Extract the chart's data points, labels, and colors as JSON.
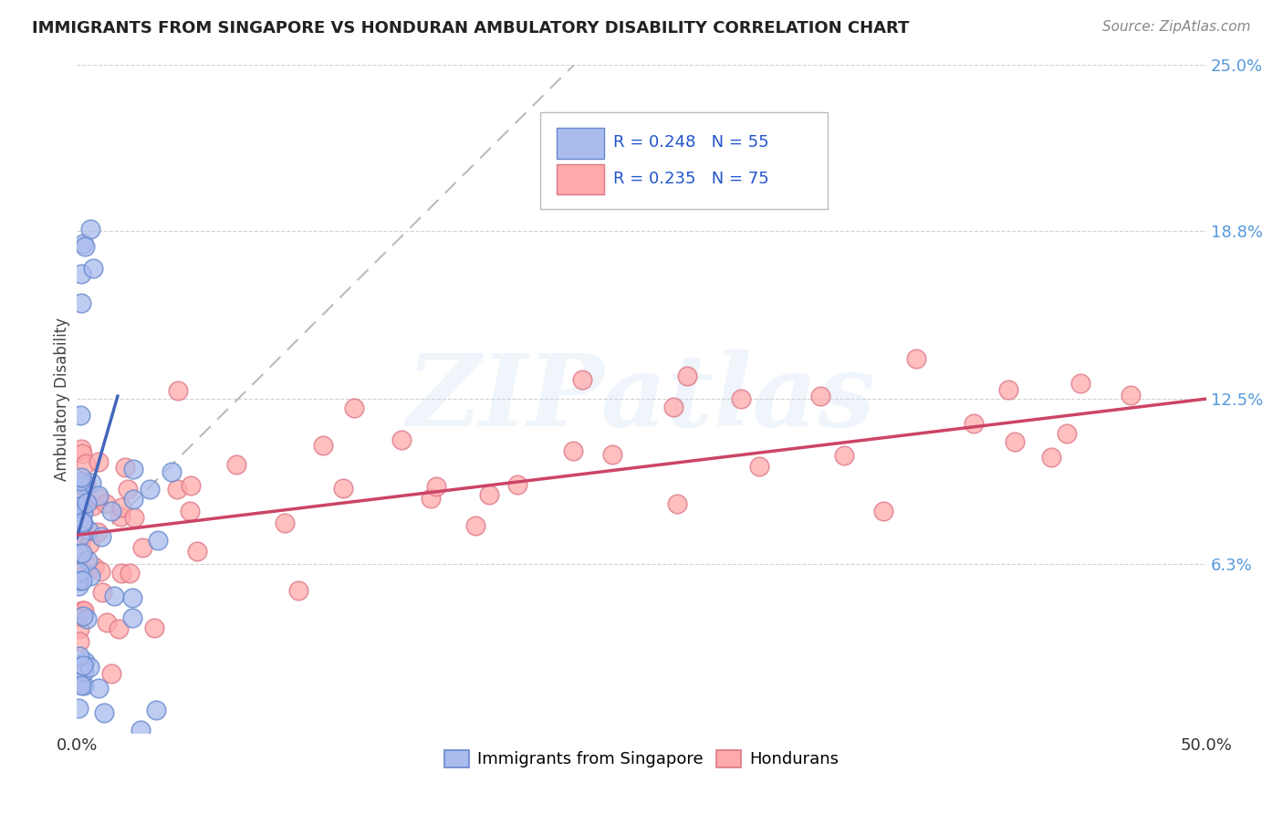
{
  "title": "IMMIGRANTS FROM SINGAPORE VS HONDURAN AMBULATORY DISABILITY CORRELATION CHART",
  "source": "Source: ZipAtlas.com",
  "ylabel": "Ambulatory Disability",
  "xlim": [
    0.0,
    0.5
  ],
  "ylim": [
    0.0,
    0.25
  ],
  "xtick_positions": [
    0.0,
    0.1,
    0.2,
    0.3,
    0.4,
    0.5
  ],
  "xticklabels": [
    "0.0%",
    "",
    "",
    "",
    "",
    "50.0%"
  ],
  "ytick_positions": [
    0.0,
    0.063,
    0.125,
    0.188,
    0.25
  ],
  "yticklabels": [
    "",
    "6.3%",
    "12.5%",
    "18.8%",
    "25.0%"
  ],
  "grid_color": "#cccccc",
  "background_color": "#ffffff",
  "blue_color": "#aabbee",
  "pink_color": "#ffaaaa",
  "blue_edge": "#6688cc",
  "pink_edge": "#dd7788",
  "blue_line_color": "#4466bb",
  "pink_line_color": "#cc4466",
  "gray_dash_color": "#aaaaaa",
  "legend_label_blue": "Immigrants from Singapore",
  "legend_label_pink": "Hondurans",
  "watermark": "ZIPatlas",
  "title_color": "#222222",
  "source_color": "#888888",
  "yaxis_tick_color": "#5599dd",
  "xaxis_tick_color": "#333333"
}
